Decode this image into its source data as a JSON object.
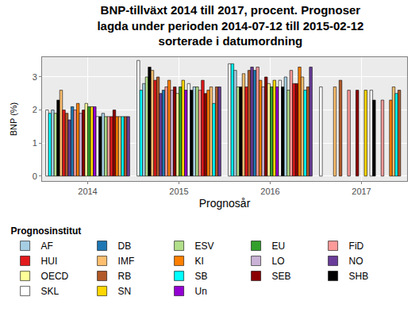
{
  "chart_data": {
    "type": "bar",
    "title": "BNP-tillväxt 2014 till 2017, procent. Prognoser\nlagda under perioden 2014-07-12 till 2015-02-12\nsorterade i datumordning",
    "x_label": "Prognosår",
    "y_label": "BNP (%)",
    "legend_title": "Prognosinstitut",
    "categories": [
      "2014",
      "2015",
      "2016",
      "2017"
    ],
    "ylim": [
      -0.15,
      3.6
    ],
    "yticks": [
      0,
      1,
      2,
      3
    ],
    "grid": true,
    "legend": "bottom",
    "series": [
      {
        "name": "SKL",
        "color": "#ffffff",
        "values": [
          2.0,
          3.5,
          3.4,
          2.7
        ]
      },
      {
        "name": "SB",
        "color": "#00ffff",
        "values": [
          1.9,
          2.6,
          3.4,
          null
        ]
      },
      {
        "name": "AF",
        "color": "#a6cee3",
        "values": [
          2.0,
          2.8,
          3.2,
          null
        ]
      },
      {
        "name": "ESV",
        "color": "#b2df8a",
        "values": [
          1.9,
          3.0,
          2.7,
          null
        ]
      },
      {
        "name": "SHB",
        "color": "#000000",
        "values": [
          2.3,
          3.3,
          2.7,
          null
        ]
      },
      {
        "name": "IMF",
        "color": "#fdbf6f",
        "values": [
          2.6,
          3.2,
          3.1,
          2.7
        ]
      },
      {
        "name": "HUI",
        "color": "#e31a1c",
        "values": [
          2.0,
          2.9,
          2.7,
          null
        ]
      },
      {
        "name": "RB",
        "color": "#b15928",
        "values": [
          1.9,
          3.0,
          3.2,
          2.9
        ]
      },
      {
        "name": "NO",
        "color": "#6a3d9a",
        "values": [
          1.7,
          2.5,
          3.3,
          null
        ]
      },
      {
        "name": "DB",
        "color": "#1f78b4",
        "values": [
          2.1,
          2.6,
          3.2,
          null
        ]
      },
      {
        "name": "FiD",
        "color": "#fb9a99",
        "values": [
          2.0,
          2.7,
          3.3,
          2.6
        ]
      },
      {
        "name": "KI",
        "color": "#ff7f00",
        "values": [
          2.2,
          2.9,
          2.9,
          null
        ]
      },
      {
        "name": "LO",
        "color": "#cab2d6",
        "values": [
          1.9,
          2.6,
          2.7,
          null
        ]
      },
      {
        "name": "SEB",
        "color": "#8b0000",
        "values": [
          2.0,
          2.7,
          3.0,
          2.6
        ]
      },
      {
        "name": "OECD",
        "color": "#ffff99",
        "values": [
          2.2,
          2.5,
          2.8,
          null
        ]
      },
      {
        "name": "EU",
        "color": "#33a02c",
        "values": [
          2.1,
          2.7,
          2.7,
          null
        ]
      },
      {
        "name": "SN",
        "color": "#ffd700",
        "values": [
          2.1,
          2.9,
          2.9,
          2.6
        ]
      },
      {
        "name": "Un",
        "color": "#9400d3",
        "values": [
          2.1,
          2.6,
          2.7,
          null
        ]
      },
      {
        "name": "SKL",
        "color": "#ffffff",
        "values": [
          1.8,
          2.8,
          2.9,
          2.6
        ]
      },
      {
        "name": "SHB",
        "color": "#000000",
        "values": [
          1.8,
          2.6,
          2.7,
          2.3
        ]
      },
      {
        "name": "AF",
        "color": "#a6cee3",
        "values": [
          1.9,
          2.7,
          3.0,
          null
        ]
      },
      {
        "name": "ESV",
        "color": "#b2df8a",
        "values": [
          1.8,
          2.7,
          2.6,
          null
        ]
      },
      {
        "name": "FiD",
        "color": "#fb9a99",
        "values": [
          1.8,
          2.6,
          3.2,
          2.3
        ]
      },
      {
        "name": "HUI",
        "color": "#e31a1c",
        "values": [
          1.8,
          2.9,
          2.8,
          null
        ]
      },
      {
        "name": "SEB",
        "color": "#8b0000",
        "values": [
          2.0,
          2.5,
          2.8,
          null
        ]
      },
      {
        "name": "KI",
        "color": "#ff7f00",
        "values": [
          1.8,
          2.6,
          3.3,
          2.3
        ]
      },
      {
        "name": "IMF",
        "color": "#fdbf6f",
        "values": [
          1.8,
          2.7,
          3.0,
          2.7
        ]
      },
      {
        "name": "SB",
        "color": "#00ffff",
        "values": [
          1.8,
          2.2,
          2.6,
          2.5
        ]
      },
      {
        "name": "RB",
        "color": "#b15928",
        "values": [
          1.8,
          2.7,
          2.7,
          2.6
        ]
      },
      {
        "name": "NO",
        "color": "#6a3d9a",
        "values": [
          1.8,
          2.7,
          3.3,
          null
        ]
      }
    ]
  }
}
